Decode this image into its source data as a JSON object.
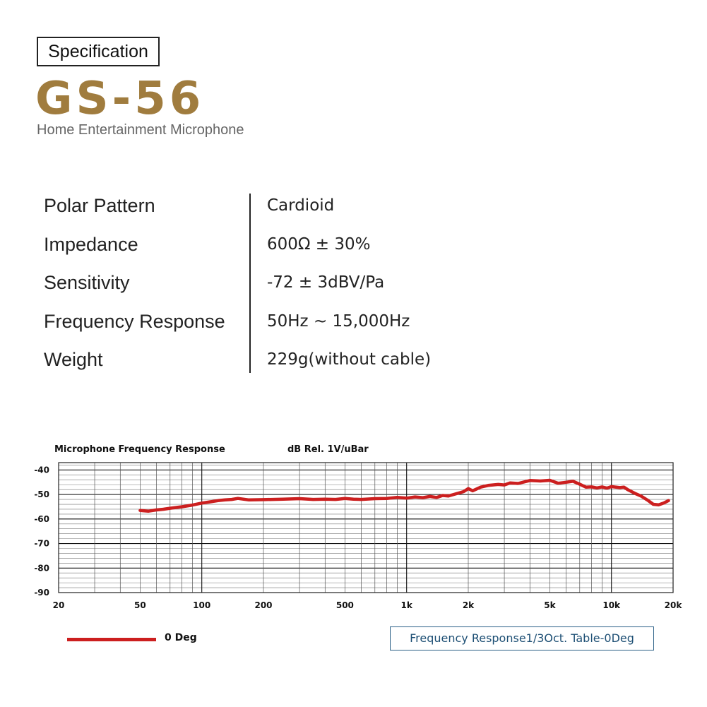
{
  "header": {
    "badge": "Specification",
    "model": "GS-56",
    "subtitle": "Home Entertainment Microphone"
  },
  "specs": [
    {
      "label": "Polar Pattern",
      "value": "Cardioid"
    },
    {
      "label": "Impedance",
      "value": "600Ω ± 30%"
    },
    {
      "label": "Sensitivity",
      "value": "-72 ± 3dBV/Pa"
    },
    {
      "label": "Frequency Response",
      "value": "50Hz ~ 15,000Hz"
    },
    {
      "label": "Weight",
      "value": "229g(without cable)"
    }
  ],
  "legend": {
    "series_label": "0 Deg",
    "table_label": "Frequency Response1/3Oct. Table-0Deg"
  },
  "chart_data": {
    "type": "line",
    "title": "Microphone Frequency Response",
    "ylabel": "dB Rel. 1V/uBar",
    "x_scale": "log",
    "xlim": [
      20,
      20000
    ],
    "ylim": [
      -90,
      -37
    ],
    "x_ticks": [
      {
        "value": 20,
        "label": "20"
      },
      {
        "value": 50,
        "label": "50"
      },
      {
        "value": 100,
        "label": "100"
      },
      {
        "value": 200,
        "label": "200"
      },
      {
        "value": 500,
        "label": "500"
      },
      {
        "value": 1000,
        "label": "1k"
      },
      {
        "value": 2000,
        "label": "2k"
      },
      {
        "value": 5000,
        "label": "5k"
      },
      {
        "value": 10000,
        "label": "10k"
      },
      {
        "value": 20000,
        "label": "20k"
      }
    ],
    "y_ticks": [
      {
        "value": -40,
        "label": "-40"
      },
      {
        "value": -50,
        "label": "-50"
      },
      {
        "value": -60,
        "label": "-60"
      },
      {
        "value": -70,
        "label": "-70"
      },
      {
        "value": -80,
        "label": "-80"
      },
      {
        "value": -90,
        "label": "-90"
      }
    ],
    "grid": true,
    "series_color": "#cc1f1f",
    "series": [
      {
        "name": "0 Deg",
        "x": [
          50,
          55,
          60,
          65,
          70,
          80,
          90,
          100,
          110,
          120,
          130,
          140,
          150,
          170,
          200,
          250,
          300,
          350,
          400,
          450,
          500,
          550,
          600,
          700,
          800,
          900,
          1000,
          1100,
          1200,
          1300,
          1400,
          1500,
          1600,
          1800,
          1900,
          2000,
          2100,
          2300,
          2500,
          2800,
          3000,
          3200,
          3500,
          4000,
          4500,
          5000,
          5500,
          6000,
          6500,
          7000,
          7500,
          8000,
          8500,
          9000,
          9500,
          10000,
          11000,
          11500,
          12000,
          13000,
          14000,
          15000,
          16000,
          17000,
          18000,
          19000
        ],
        "y": [
          -56.5,
          -56.8,
          -56.3,
          -56.0,
          -55.6,
          -55.0,
          -54.3,
          -53.5,
          -53.0,
          -52.5,
          -52.2,
          -52.0,
          -51.6,
          -52.2,
          -52.1,
          -51.9,
          -51.7,
          -52.0,
          -51.9,
          -52.0,
          -51.6,
          -51.9,
          -52.0,
          -51.7,
          -51.6,
          -51.2,
          -51.5,
          -51.0,
          -51.3,
          -50.8,
          -51.2,
          -50.4,
          -50.6,
          -49.4,
          -48.8,
          -47.6,
          -48.5,
          -47.0,
          -46.3,
          -45.9,
          -46.1,
          -45.3,
          -45.5,
          -44.3,
          -44.5,
          -44.2,
          -45.4,
          -45.0,
          -44.6,
          -45.8,
          -47.0,
          -46.9,
          -47.3,
          -46.9,
          -47.4,
          -46.8,
          -47.2,
          -47.0,
          -48.0,
          -49.5,
          -50.7,
          -52.3,
          -54.0,
          -54.2,
          -53.5,
          -52.5
        ]
      }
    ]
  }
}
